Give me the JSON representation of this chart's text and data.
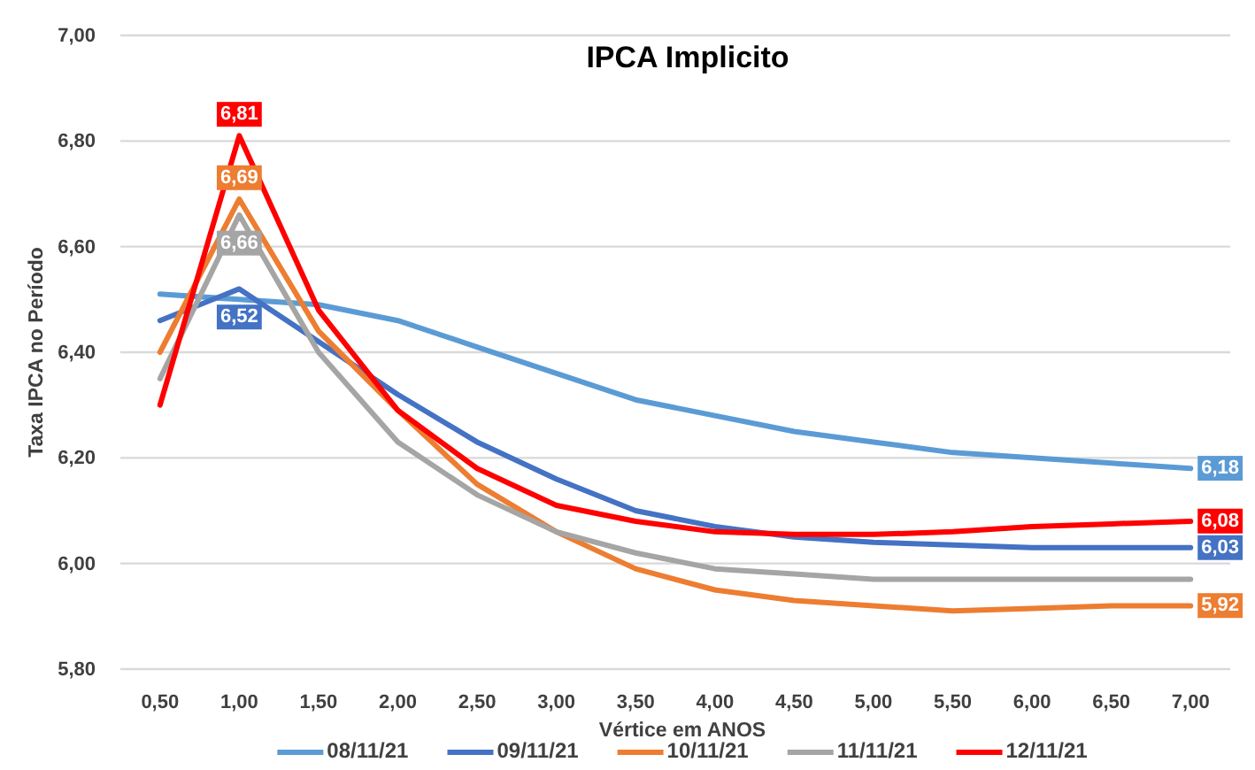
{
  "chart_data": {
    "type": "line",
    "title": "IPCA Implicito",
    "xlabel": "Vértice em ANOS",
    "ylabel": "Taxa IPCA no Período",
    "categories": [
      "0,50",
      "1,00",
      "1,50",
      "2,00",
      "2,50",
      "3,00",
      "3,50",
      "4,00",
      "4,50",
      "5,00",
      "5,50",
      "6,00",
      "6,50",
      "7,00"
    ],
    "series": [
      {
        "name": "08/11/21",
        "color": "#5b9bd5",
        "values": [
          6.51,
          6.5,
          6.49,
          6.46,
          6.41,
          6.36,
          6.31,
          6.28,
          6.25,
          6.23,
          6.21,
          6.2,
          6.19,
          6.18
        ],
        "value_labels": [
          null,
          null,
          null,
          null,
          null,
          null,
          null,
          null,
          null,
          null,
          null,
          null,
          null,
          "6,18"
        ]
      },
      {
        "name": "09/11/21",
        "color": "#4472c4",
        "values": [
          6.46,
          6.52,
          6.42,
          6.32,
          6.23,
          6.16,
          6.1,
          6.07,
          6.05,
          6.04,
          6.035,
          6.03,
          6.03,
          6.03
        ],
        "value_labels": [
          null,
          "6,52",
          null,
          null,
          null,
          null,
          null,
          null,
          null,
          null,
          null,
          null,
          null,
          "6,03"
        ]
      },
      {
        "name": "10/11/21",
        "color": "#ed7d31",
        "values": [
          6.4,
          6.69,
          6.44,
          6.29,
          6.15,
          6.06,
          5.99,
          5.95,
          5.93,
          5.92,
          5.91,
          5.915,
          5.92,
          5.92
        ],
        "value_labels": [
          null,
          "6,69",
          null,
          null,
          null,
          null,
          null,
          null,
          null,
          null,
          null,
          null,
          null,
          "5,92"
        ]
      },
      {
        "name": "11/11/21",
        "color": "#a5a5a5",
        "values": [
          6.35,
          6.66,
          6.4,
          6.23,
          6.13,
          6.06,
          6.02,
          5.99,
          5.98,
          5.97,
          5.97,
          5.97,
          5.97,
          5.97
        ],
        "value_labels": [
          null,
          "6,66",
          null,
          null,
          null,
          null,
          null,
          null,
          null,
          null,
          null,
          null,
          null,
          null
        ]
      },
      {
        "name": "12/11/21",
        "color": "#ff0000",
        "values": [
          6.3,
          6.81,
          6.48,
          6.29,
          6.18,
          6.11,
          6.08,
          6.06,
          6.055,
          6.055,
          6.06,
          6.07,
          6.075,
          6.08
        ],
        "value_labels": [
          null,
          "6,81",
          null,
          null,
          null,
          null,
          null,
          null,
          null,
          null,
          null,
          null,
          null,
          "6,08"
        ]
      }
    ],
    "ylim": [
      5.8,
      7.0
    ],
    "yticks": [
      {
        "value": 5.8,
        "label": "5,80"
      },
      {
        "value": 6.0,
        "label": "6,00"
      },
      {
        "value": 6.2,
        "label": "6,20"
      },
      {
        "value": 6.4,
        "label": "6,40"
      },
      {
        "value": 6.6,
        "label": "6,60"
      },
      {
        "value": 6.8,
        "label": "6,80"
      },
      {
        "value": 7.0,
        "label": "7,00"
      }
    ],
    "grid": "y",
    "legend": "bottom",
    "marker": "none",
    "line_style": "solid"
  }
}
